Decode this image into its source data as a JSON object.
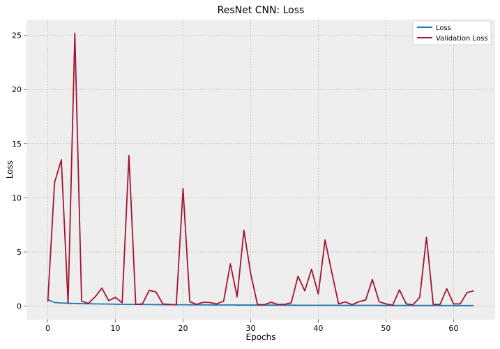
{
  "chart_data": {
    "type": "line",
    "title": "ResNet CNN: Loss",
    "xlabel": "Epochs",
    "ylabel": "Loss",
    "xlim": [
      -3.15,
      66.15
    ],
    "ylim": [
      -1.26,
      26.46
    ],
    "xticks": [
      0,
      10,
      20,
      30,
      40,
      50,
      60
    ],
    "yticks": [
      0,
      5,
      10,
      15,
      20,
      25
    ],
    "grid": true,
    "legend_position": "top-right",
    "x": [
      0,
      1,
      2,
      3,
      4,
      5,
      6,
      7,
      8,
      9,
      10,
      11,
      12,
      13,
      14,
      15,
      16,
      17,
      18,
      19,
      20,
      21,
      22,
      23,
      24,
      25,
      26,
      27,
      28,
      29,
      30,
      31,
      32,
      33,
      34,
      35,
      36,
      37,
      38,
      39,
      40,
      41,
      42,
      43,
      44,
      45,
      46,
      47,
      48,
      49,
      50,
      51,
      52,
      53,
      54,
      55,
      56,
      57,
      58,
      59,
      60,
      61,
      62,
      63
    ],
    "series": [
      {
        "name": "Loss",
        "color": "#1f77b4",
        "values": [
          0.6,
          0.33,
          0.28,
          0.26,
          0.24,
          0.22,
          0.21,
          0.2,
          0.19,
          0.18,
          0.17,
          0.16,
          0.15,
          0.15,
          0.14,
          0.14,
          0.13,
          0.13,
          0.12,
          0.12,
          0.12,
          0.11,
          0.11,
          0.11,
          0.1,
          0.1,
          0.1,
          0.1,
          0.09,
          0.09,
          0.09,
          0.09,
          0.08,
          0.08,
          0.08,
          0.08,
          0.08,
          0.07,
          0.07,
          0.07,
          0.07,
          0.07,
          0.07,
          0.06,
          0.06,
          0.06,
          0.06,
          0.06,
          0.06,
          0.06,
          0.05,
          0.05,
          0.05,
          0.05,
          0.05,
          0.05,
          0.05,
          0.05,
          0.04,
          0.04,
          0.04,
          0.04,
          0.04,
          0.04
        ]
      },
      {
        "name": "Validation Loss",
        "color": "#a2142f",
        "values": [
          0.4,
          11.4,
          13.5,
          0.25,
          25.2,
          0.45,
          0.25,
          0.85,
          1.65,
          0.5,
          0.8,
          0.3,
          13.9,
          0.15,
          0.2,
          1.45,
          1.3,
          0.2,
          0.15,
          0.12,
          10.85,
          0.4,
          0.15,
          0.35,
          0.32,
          0.2,
          0.45,
          3.9,
          0.85,
          7.0,
          3.0,
          0.15,
          0.12,
          0.35,
          0.15,
          0.15,
          0.3,
          2.75,
          1.4,
          3.4,
          1.1,
          6.1,
          3.1,
          0.2,
          0.38,
          0.12,
          0.4,
          0.55,
          2.45,
          0.4,
          0.2,
          0.08,
          1.5,
          0.2,
          0.12,
          0.8,
          6.35,
          0.15,
          0.15,
          1.6,
          0.2,
          0.2,
          1.25,
          1.4
        ]
      }
    ]
  }
}
